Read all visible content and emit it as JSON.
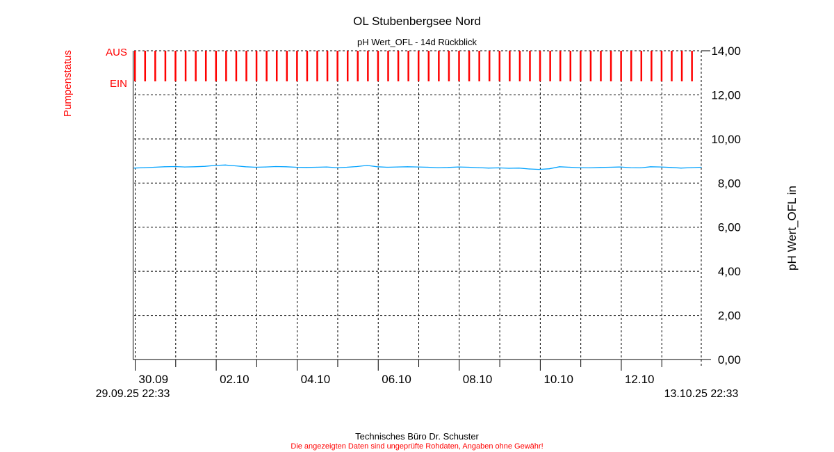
{
  "chart_data": {
    "type": "line",
    "title": "OL Stubenbergsee Nord",
    "subtitle": "pH Wert_OFL - 14d Rückblick",
    "ylabel": "pH Wert_OFL in",
    "ylabel_left": "Pumpenstatus",
    "pump_state_labels": [
      "AUS",
      "EIN"
    ],
    "ylim": [
      0,
      14
    ],
    "yticks": [
      "0,00",
      "2,00",
      "4,00",
      "6,00",
      "8,00",
      "10,00",
      "12,00",
      "14,00"
    ],
    "x_range_hours": [
      0,
      336
    ],
    "x_start_label": "29.09.25 22:33",
    "x_end_label": "13.10.25 22:33",
    "first_midnight_hour": 1.45,
    "xtick_labels": [
      "30.09",
      "",
      "02.10",
      "",
      "04.10",
      "",
      "06.10",
      "",
      "08.10",
      "",
      "10.10",
      "",
      "12.10",
      ""
    ],
    "grid": true,
    "series": [
      {
        "name": "pH Wert_OFL",
        "color": "#00a2ff",
        "step_hours": 6,
        "values": [
          8.68,
          8.7,
          8.72,
          8.74,
          8.75,
          8.73,
          8.74,
          8.76,
          8.8,
          8.82,
          8.78,
          8.74,
          8.72,
          8.73,
          8.75,
          8.74,
          8.72,
          8.71,
          8.72,
          8.73,
          8.7,
          8.72,
          8.75,
          8.8,
          8.74,
          8.72,
          8.73,
          8.74,
          8.73,
          8.72,
          8.7,
          8.71,
          8.73,
          8.72,
          8.7,
          8.68,
          8.69,
          8.67,
          8.68,
          8.64,
          8.62,
          8.65,
          8.74,
          8.72,
          8.7,
          8.69,
          8.71,
          8.72,
          8.73,
          8.7,
          8.69,
          8.74,
          8.73,
          8.71,
          8.68,
          8.7,
          8.72
        ]
      }
    ],
    "pump_events": {
      "color": "#ff0000",
      "hours": [
        0.5,
        6.5,
        12.5,
        18.5,
        24.5,
        30.5,
        36.5,
        42.5,
        48.5,
        54.5,
        60.5,
        66.5,
        72.5,
        78.5,
        84.5,
        90.5,
        96.5,
        102.5,
        108.5,
        114.5,
        120.5,
        126.5,
        132.5,
        138.5,
        144.5,
        150.5,
        156.5,
        162.5,
        168.5,
        174.5,
        180.5,
        186.5,
        192.5,
        198.5,
        204.5,
        210.5,
        216.5,
        222.5,
        228.5,
        234.5,
        240.5,
        246.5,
        252.5,
        258.5,
        264.5,
        270.5,
        276.5,
        282.5,
        288.5,
        294.5,
        300.5,
        306.5,
        312.5,
        318.5,
        324.5,
        330.5
      ]
    }
  },
  "footer": {
    "company": "Technisches Büro Dr. Schuster",
    "disclaimer": "Die angezeigten Daten sind ungeprüfte Rohdaten, Angaben ohne Gewähr!"
  }
}
